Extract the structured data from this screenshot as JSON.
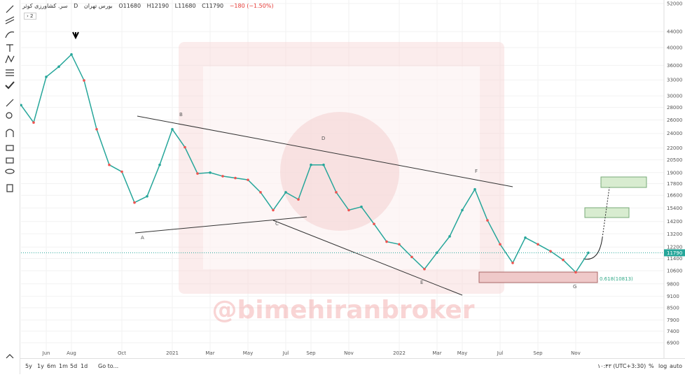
{
  "chart_data": {
    "type": "line",
    "color": "#26a69a",
    "log_scale": true,
    "grid": true,
    "header": {
      "symbol": "سر. کشاورزی کوثر",
      "interval": "D",
      "exchange": "بورس تهران",
      "open": "O11680",
      "high": "H12190",
      "low": "L11680",
      "close": "C11790",
      "change": "−180 (−1.50%)",
      "indicators": 2
    },
    "categories": [
      null,
      null,
      "Jun",
      null,
      "Aug",
      null,
      null,
      null,
      "Oct",
      null,
      null,
      null,
      "2021",
      null,
      null,
      "Mar",
      null,
      null,
      "May",
      null,
      null,
      "Jul",
      null,
      "Sep",
      null,
      null,
      "Nov",
      null,
      null,
      null,
      "2022",
      null,
      null,
      "Mar",
      null,
      "May",
      null,
      null,
      "Jul",
      null,
      null,
      "Sep",
      null,
      null,
      "Nov",
      null
    ],
    "values": [
      28400,
      25600,
      33600,
      35700,
      38400,
      32900,
      24600,
      19900,
      19100,
      15900,
      16500,
      19900,
      24600,
      22100,
      18900,
      19000,
      18600,
      18400,
      18200,
      16900,
      15200,
      16900,
      16200,
      19900,
      19900,
      16900,
      15200,
      15500,
      14000,
      12600,
      12400,
      11500,
      10700,
      11800,
      13000,
      15200,
      17200,
      14300,
      12400,
      11100,
      12900,
      12400,
      11900,
      11300,
      10500,
      11790
    ],
    "ylim": [
      6350,
      53100
    ],
    "yticks": [
      52000,
      44000,
      40000,
      36000,
      33000,
      30000,
      28000,
      26000,
      24000,
      22000,
      20500,
      19000,
      17800,
      16600,
      15400,
      14200,
      13200,
      12200,
      11400,
      10600,
      9800,
      9100,
      8500,
      7900,
      7400,
      6900
    ],
    "annotations": [
      "A",
      "B",
      "C",
      "D",
      "E",
      "F",
      "G",
      "0.618(10813)"
    ],
    "watermark": "@bimehiranbroker"
  },
  "toolbar": {
    "ranges": [
      "5y",
      "1y",
      "6m",
      "1m",
      "5d",
      "1d"
    ],
    "goto": "Go to...",
    "time": "۱۰:۴۳ (UTC+3:30)",
    "percent": "%",
    "log": "log",
    "auto": "auto"
  }
}
